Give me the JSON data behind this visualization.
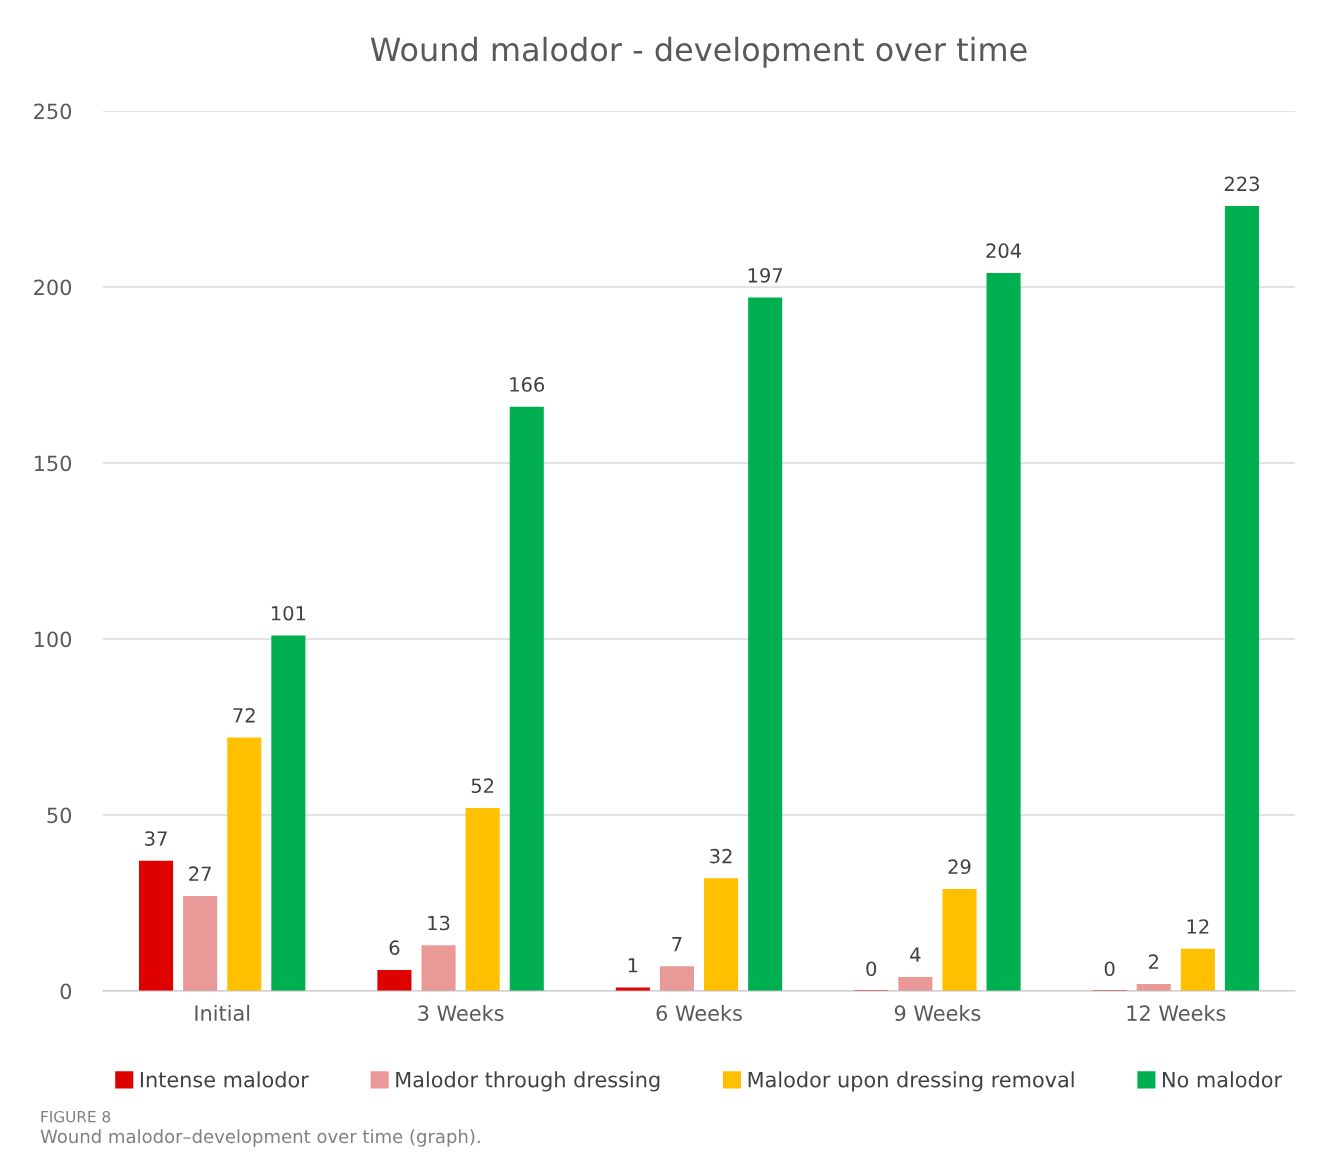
{
  "chart_data": {
    "type": "bar",
    "title": "Wound malodor - development over time",
    "categories": [
      "Initial",
      "3 Weeks",
      "6 Weeks",
      "9 Weeks",
      "12 Weeks"
    ],
    "series": [
      {
        "name": "Intense malodor",
        "color": "#df0000",
        "values": [
          37,
          6,
          1,
          0,
          0
        ]
      },
      {
        "name": "Malodor through dressing",
        "color": "#ea9999",
        "values": [
          27,
          13,
          7,
          4,
          2
        ]
      },
      {
        "name": "Malodor upon dressing removal",
        "color": "#ffc000",
        "values": [
          72,
          52,
          32,
          29,
          12
        ]
      },
      {
        "name": "No malodor",
        "color": "#00b050",
        "values": [
          101,
          166,
          197,
          204,
          223
        ]
      }
    ],
    "ylim": [
      0,
      250
    ],
    "yticks": [
      0,
      50,
      100,
      150,
      200,
      250
    ],
    "grid": "y",
    "legend": "bottom",
    "data_labels": true,
    "annotations": [
      "FIGURE 8",
      "Wound malodor–development over time (graph)."
    ]
  }
}
